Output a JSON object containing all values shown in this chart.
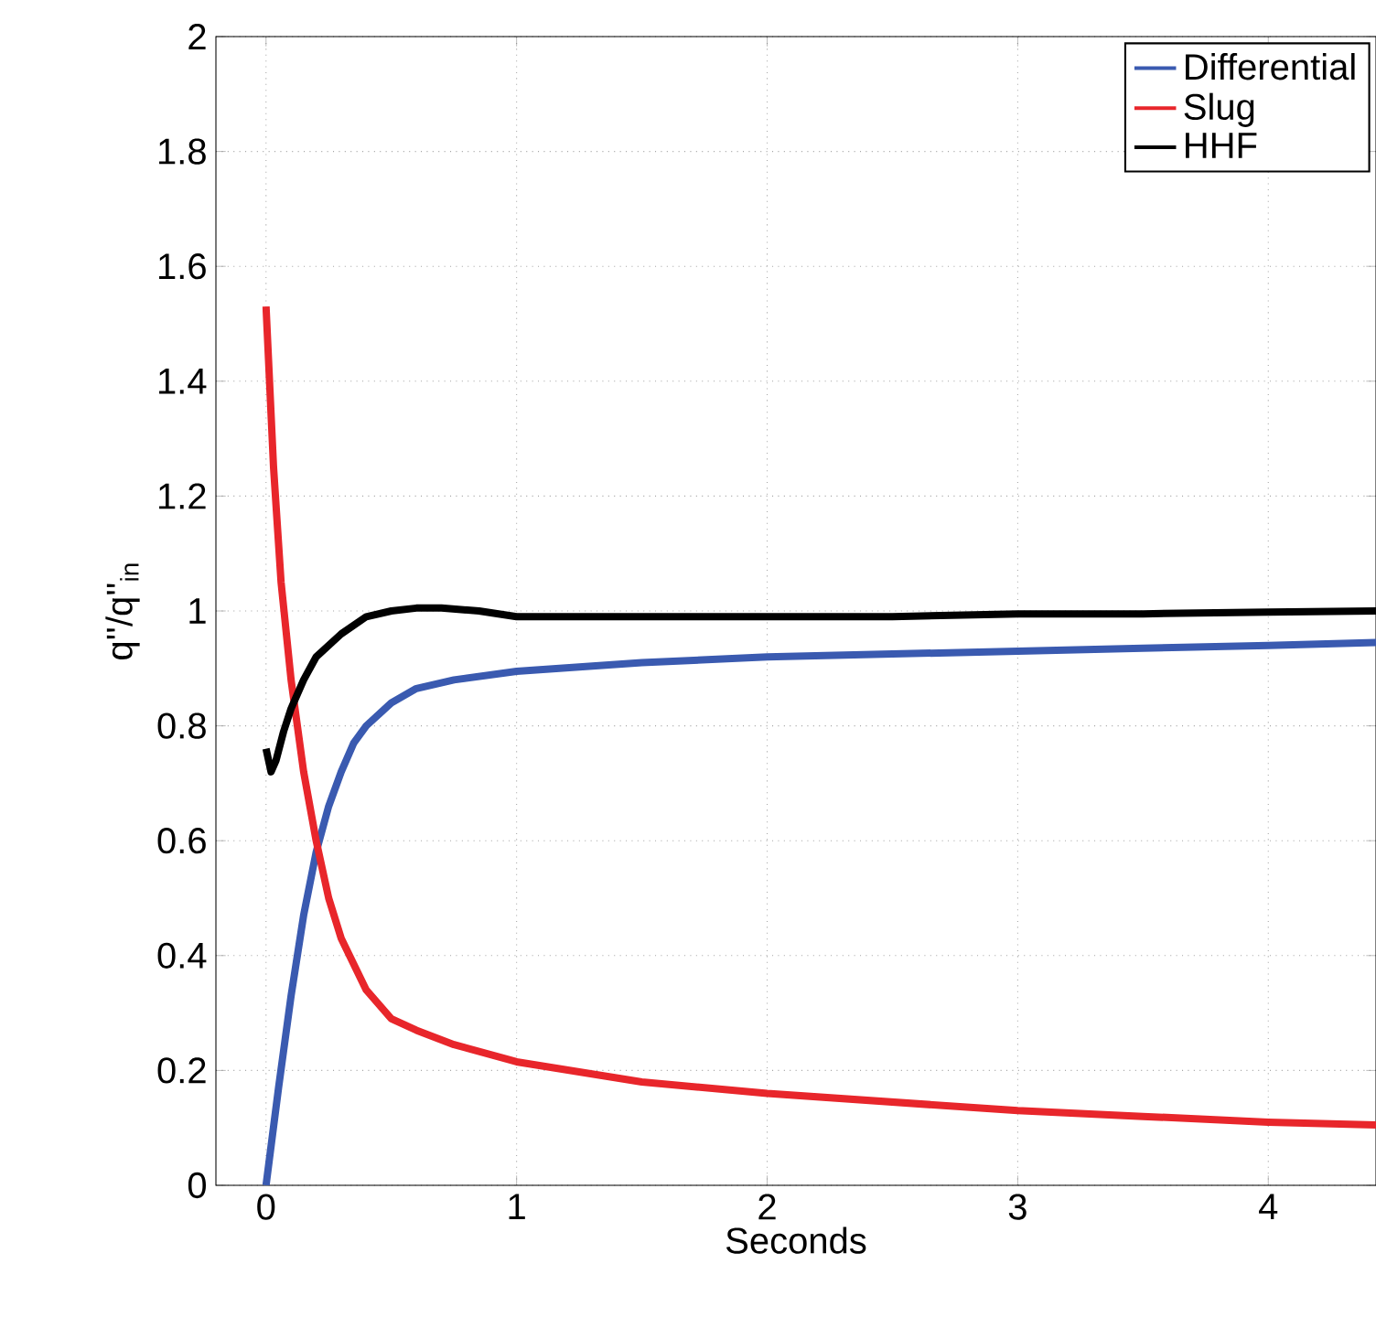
{
  "chart_data": {
    "type": "line",
    "xlabel": "Seconds",
    "ylabel": "q''/q''$_{in}$",
    "xlim": [
      -0.2,
      4.43
    ],
    "ylim": [
      0,
      2
    ],
    "xticks": [
      0,
      1,
      2,
      3,
      4
    ],
    "yticks": [
      0,
      0.2,
      0.4,
      0.6,
      0.8,
      1,
      1.2,
      1.4,
      1.6,
      1.8,
      2
    ],
    "grid": true,
    "legend": "top right",
    "series": [
      {
        "name": "Differential",
        "color": "#3a5ab0",
        "x": [
          0,
          0.05,
          0.1,
          0.15,
          0.2,
          0.25,
          0.3,
          0.35,
          0.4,
          0.5,
          0.6,
          0.75,
          1,
          1.5,
          2,
          2.5,
          3,
          3.5,
          4,
          4.43
        ],
        "values": [
          0,
          0.17,
          0.33,
          0.47,
          0.58,
          0.66,
          0.72,
          0.77,
          0.8,
          0.84,
          0.865,
          0.88,
          0.895,
          0.91,
          0.92,
          0.925,
          0.93,
          0.935,
          0.94,
          0.945
        ]
      },
      {
        "name": "Slug",
        "color": "#e8262b",
        "x": [
          0,
          0.03,
          0.06,
          0.1,
          0.15,
          0.2,
          0.25,
          0.3,
          0.4,
          0.5,
          0.6,
          0.75,
          1,
          1.5,
          2,
          2.5,
          3,
          3.5,
          4,
          4.43
        ],
        "values": [
          1.53,
          1.25,
          1.05,
          0.88,
          0.72,
          0.6,
          0.5,
          0.43,
          0.34,
          0.29,
          0.27,
          0.245,
          0.215,
          0.18,
          0.16,
          0.145,
          0.13,
          0.12,
          0.11,
          0.105
        ]
      },
      {
        "name": "HHF",
        "color": "#000000",
        "x": [
          0,
          0.02,
          0.04,
          0.07,
          0.1,
          0.15,
          0.2,
          0.3,
          0.4,
          0.5,
          0.6,
          0.7,
          0.85,
          1,
          1.5,
          2,
          2.5,
          3,
          3.5,
          4,
          4.43
        ],
        "values": [
          0.76,
          0.72,
          0.74,
          0.79,
          0.83,
          0.88,
          0.92,
          0.96,
          0.99,
          1.0,
          1.005,
          1.005,
          1.0,
          0.99,
          0.99,
          0.99,
          0.99,
          0.995,
          0.995,
          0.998,
          1.0
        ]
      }
    ]
  }
}
